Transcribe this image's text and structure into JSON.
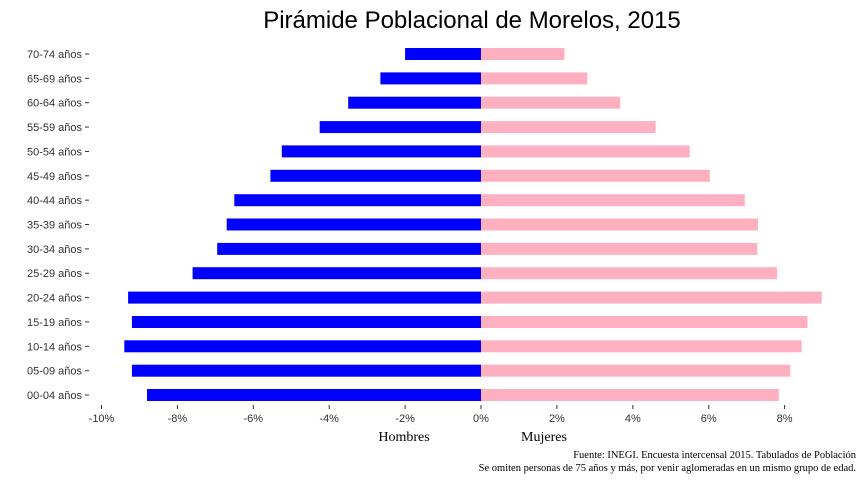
{
  "chart_data": {
    "type": "bar",
    "orientation": "horizontal",
    "title": "Pirámide Poblacional de Morelos, 2015",
    "categories": [
      "00-04 años",
      "05-09 años",
      "10-14 años",
      "15-19 años",
      "20-24 años",
      "25-29 años",
      "30-34 años",
      "35-39 años",
      "40-44 años",
      "45-49 años",
      "50-54 años",
      "55-59 años",
      "60-64 años",
      "65-69 años",
      "70-74 años"
    ],
    "series": [
      {
        "name": "Hombres",
        "color": "#0000ff",
        "values": [
          -8.8,
          -9.2,
          -9.4,
          -9.2,
          -9.3,
          -7.6,
          -6.95,
          -6.7,
          -6.5,
          -5.55,
          -5.25,
          -4.25,
          -3.5,
          -2.65,
          -2.0
        ]
      },
      {
        "name": "Mujeres",
        "color": "#ffb0c0",
        "values": [
          7.85,
          8.15,
          8.45,
          8.6,
          8.98,
          7.8,
          7.28,
          7.3,
          6.95,
          6.03,
          5.5,
          4.6,
          3.67,
          2.8,
          2.2
        ]
      }
    ],
    "xlim": [
      -10,
      9.2
    ],
    "xticks": [
      -10,
      -8,
      -6,
      -4,
      -2,
      0,
      2,
      4,
      6,
      8
    ],
    "xtick_labels": [
      "-10%",
      "-8%",
      "-6%",
      "-4%",
      "-2%",
      "0%",
      "2%",
      "4%",
      "6%",
      "8%"
    ],
    "xlabel_left": "Hombres",
    "xlabel_right": "Mujeres",
    "caption_lines": [
      "Fuente: INEGI. Encuesta intercensal 2015. Tabulados de Población",
      "Se omiten personas de 75 años y más, por venir aglomeradas en un mismo grupo de edad."
    ],
    "grid": false,
    "legend": "none"
  }
}
